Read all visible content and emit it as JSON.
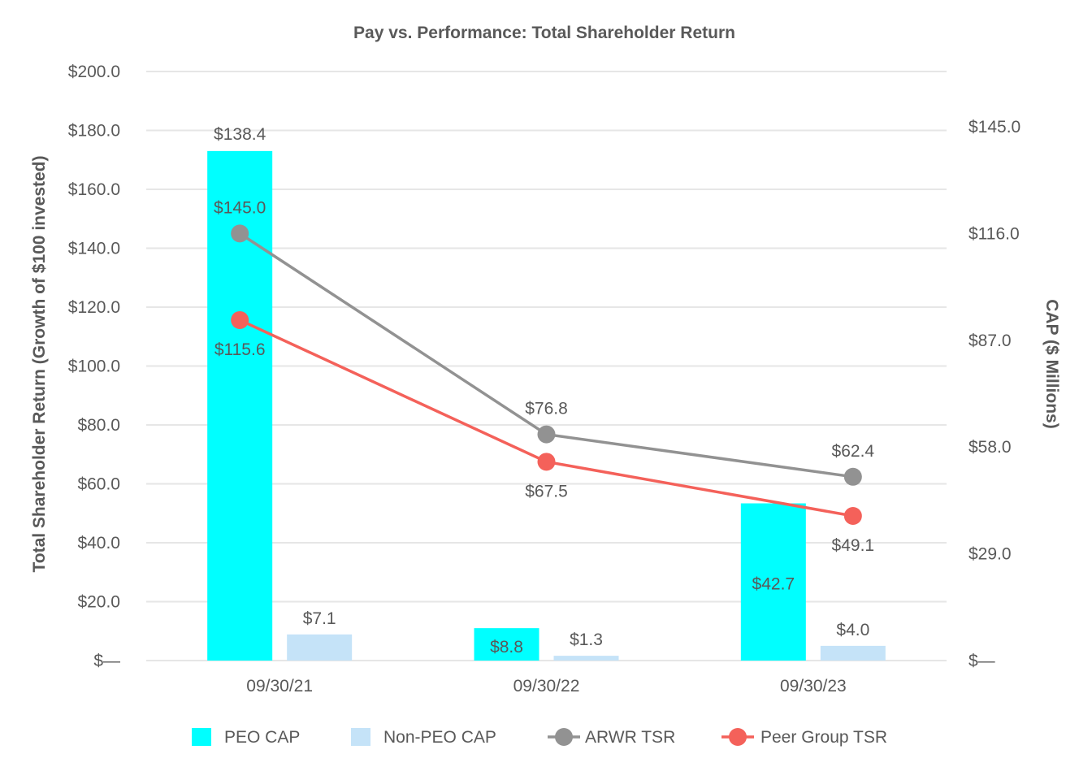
{
  "chart_data": {
    "type": "bar",
    "title": "Pay vs. Performance: Total Shareholder Return",
    "categories": [
      "09/30/21",
      "09/30/22",
      "09/30/23"
    ],
    "ylabel": "Total Shareholder Return (Growth of $100 invested)",
    "y2label": "CAP ($ Millions)",
    "ylim": [
      0,
      200
    ],
    "y2lim": [
      0,
      160
    ],
    "yticks": [
      {
        "value": 0,
        "label": "$—"
      },
      {
        "value": 20,
        "label": "$20.0"
      },
      {
        "value": 40,
        "label": "$40.0"
      },
      {
        "value": 60,
        "label": "$60.0"
      },
      {
        "value": 80,
        "label": "$80.0"
      },
      {
        "value": 100,
        "label": "$100.0"
      },
      {
        "value": 120,
        "label": "$120.0"
      },
      {
        "value": 140,
        "label": "$140.0"
      },
      {
        "value": 160,
        "label": "$160.0"
      },
      {
        "value": 180,
        "label": "$180.0"
      },
      {
        "value": 200,
        "label": "$200.0"
      }
    ],
    "y2ticks": [
      {
        "value": 0,
        "label": "$—"
      },
      {
        "value": 29,
        "label": "$29.0"
      },
      {
        "value": 58,
        "label": "$58.0"
      },
      {
        "value": 87,
        "label": "$87.0"
      },
      {
        "value": 116,
        "label": "$116.0"
      },
      {
        "value": 145,
        "label": "$145.0"
      }
    ],
    "grid": true,
    "legend_position": "bottom",
    "bar_series": [
      {
        "name": "PEO CAP",
        "color": "#00ffff",
        "axis": "right",
        "values": [
          138.4,
          8.8,
          42.7
        ],
        "labels": [
          "$138.4",
          "$8.8",
          "$42.7"
        ]
      },
      {
        "name": "Non-PEO CAP",
        "color": "#c5e3f8",
        "axis": "right",
        "values": [
          7.1,
          1.3,
          4.0
        ],
        "labels": [
          "$7.1",
          "$1.3",
          "$4.0"
        ]
      }
    ],
    "line_series": [
      {
        "name": "ARWR TSR",
        "color": "#929292",
        "axis": "left",
        "values": [
          145.0,
          76.8,
          62.4
        ],
        "labels": [
          "$145.0",
          "$76.8",
          "$62.4"
        ]
      },
      {
        "name": "Peer Group TSR",
        "color": "#f4615a",
        "axis": "left",
        "values": [
          115.6,
          67.5,
          49.1
        ],
        "labels": [
          "$115.6",
          "$67.5",
          "$49.1"
        ]
      }
    ]
  }
}
